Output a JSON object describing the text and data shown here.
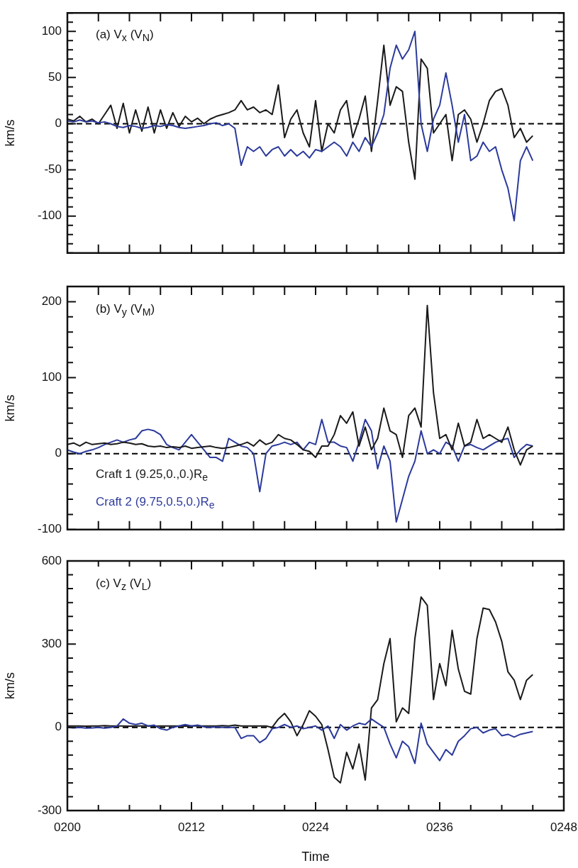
{
  "chart_data": [
    {
      "type": "line",
      "title": "(a) V$_{x}$ (V$_{N}$)",
      "ylabel": "km/s",
      "tick_labels": "y",
      "x": [
        200,
        200.6,
        201.2,
        201.8,
        202.4,
        203,
        203.6,
        204.2,
        204.8,
        205.4,
        206,
        206.6,
        207.2,
        207.8,
        208.4,
        209,
        209.6,
        210.2,
        210.8,
        211.4,
        212,
        212.6,
        213.2,
        213.8,
        214.4,
        215,
        215.6,
        216.2,
        216.8,
        217.4,
        218,
        218.6,
        219.2,
        219.8,
        220.4,
        221,
        221.6,
        222.2,
        222.8,
        223.4,
        224,
        224.6,
        225.2,
        225.8,
        226.4,
        227,
        227.6,
        228.2,
        228.8,
        229.4,
        230,
        230.6,
        231.2,
        231.8,
        232.4,
        233,
        233.6,
        234.2,
        234.8,
        235.4,
        236,
        236.6,
        237.2,
        237.8,
        238.4,
        239,
        239.6,
        240.2,
        240.8,
        241.4,
        242,
        242.6,
        243.2,
        243.8,
        244.4,
        245
      ],
      "series": [
        {
          "color": "#2b3a9b",
          "values": [
            3,
            2,
            4,
            2,
            3,
            1,
            2,
            0,
            -3,
            -4,
            -2,
            -3,
            -5,
            -4,
            -2,
            -3,
            -1,
            -2,
            -4,
            -5,
            -4,
            -3,
            -2,
            0,
            1,
            -2,
            0,
            -5,
            -45,
            -25,
            -30,
            -25,
            -35,
            -28,
            -25,
            -35,
            -28,
            -35,
            -30,
            -37,
            -28,
            -30,
            -25,
            -20,
            -25,
            -35,
            -20,
            -30,
            -15,
            -25,
            -10,
            10,
            60,
            85,
            70,
            80,
            100,
            0,
            -30,
            5,
            20,
            55,
            20,
            -20,
            10,
            -40,
            -35,
            -20,
            -30,
            -25,
            -50,
            -70,
            -105,
            -40,
            -25,
            -40
          ]
        },
        {
          "color": "#1a1a1a",
          "values": [
            5,
            3,
            8,
            2,
            5,
            0,
            10,
            20,
            -5,
            22,
            -10,
            15,
            -8,
            18,
            -10,
            15,
            -5,
            12,
            -3,
            8,
            2,
            6,
            0,
            5,
            8,
            10,
            12,
            15,
            25,
            15,
            18,
            12,
            15,
            10,
            42,
            -15,
            5,
            15,
            -10,
            -25,
            25,
            -30,
            0,
            -10,
            15,
            25,
            -15,
            5,
            30,
            -30,
            25,
            85,
            20,
            40,
            35,
            -20,
            -60,
            70,
            60,
            -10,
            0,
            10,
            -40,
            10,
            15,
            5,
            -20,
            0,
            25,
            35,
            38,
            20,
            -15,
            -5,
            -20,
            -13
          ]
        }
      ],
      "xlim": [
        200,
        248
      ],
      "xticks": [
        200,
        203,
        206,
        209,
        212,
        215,
        218,
        221,
        224,
        227,
        230,
        233,
        236,
        239,
        242,
        245,
        248
      ],
      "ylim": [
        -140,
        120
      ],
      "yticks": [
        {
          "value": -140,
          "label": null
        },
        {
          "value": -130,
          "label": null
        },
        {
          "value": -120,
          "label": null
        },
        {
          "value": -110,
          "label": null
        },
        -100,
        {
          "value": -90,
          "label": null
        },
        {
          "value": -80,
          "label": null
        },
        {
          "value": -70,
          "label": null
        },
        {
          "value": -60,
          "label": null
        },
        -50,
        {
          "value": -40,
          "label": null
        },
        {
          "value": -30,
          "label": null
        },
        {
          "value": -20,
          "label": null
        },
        {
          "value": -10,
          "label": null
        },
        0,
        {
          "value": 10,
          "label": null
        },
        {
          "value": 20,
          "label": null
        },
        {
          "value": 30,
          "label": null
        },
        {
          "value": 40,
          "label": null
        },
        50,
        {
          "value": 60,
          "label": null
        },
        {
          "value": 70,
          "label": null
        },
        {
          "value": 80,
          "label": null
        },
        {
          "value": 90,
          "label": null
        },
        100,
        {
          "value": 110,
          "label": null
        },
        {
          "value": 120,
          "label": null
        }
      ],
      "ref_lines": [
        {
          "axis": "y",
          "value": 0,
          "color": "#000000",
          "line_style": "dashed"
        }
      ]
    },
    {
      "type": "line",
      "title": "(b) V$_{y}$ (V$_{M}$)",
      "ylabel": "km/s",
      "tick_labels": "y",
      "legend": "bottom left",
      "x": [
        200,
        200.6,
        201.2,
        201.8,
        202.4,
        203,
        203.6,
        204.2,
        204.8,
        205.4,
        206,
        206.6,
        207.2,
        207.8,
        208.4,
        209,
        209.6,
        210.2,
        210.8,
        211.4,
        212,
        212.6,
        213.2,
        213.8,
        214.4,
        215,
        215.6,
        216.2,
        216.8,
        217.4,
        218,
        218.6,
        219.2,
        219.8,
        220.4,
        221,
        221.6,
        222.2,
        222.8,
        223.4,
        224,
        224.6,
        225.2,
        225.8,
        226.4,
        227,
        227.6,
        228.2,
        228.8,
        229.4,
        230,
        230.6,
        231.2,
        231.8,
        232.4,
        233,
        233.6,
        234.2,
        234.8,
        235.4,
        236,
        236.6,
        237.2,
        237.8,
        238.4,
        239,
        239.6,
        240.2,
        240.8,
        241.4,
        242,
        242.6,
        243.2,
        243.8,
        244.4,
        245
      ],
      "series": [
        {
          "name": "Craft 1 (9.25,0.,0.)R$_{e}$",
          "color": "#1a1a1a",
          "values": [
            12,
            14,
            10,
            15,
            12,
            13,
            14,
            12,
            13,
            15,
            14,
            12,
            13,
            10,
            9,
            10,
            8,
            9,
            8,
            10,
            7,
            8,
            9,
            10,
            8,
            7,
            8,
            10,
            12,
            15,
            10,
            18,
            12,
            15,
            25,
            20,
            18,
            12,
            5,
            3,
            -5,
            10,
            10,
            25,
            50,
            40,
            55,
            10,
            35,
            5,
            20,
            60,
            30,
            25,
            -5,
            50,
            60,
            35,
            195,
            80,
            20,
            25,
            5,
            40,
            10,
            15,
            45,
            20,
            25,
            20,
            15,
            35,
            5,
            -15,
            5,
            10
          ]
        },
        {
          "name": "Craft 2 (9.75,0.5,0.)R$_{e}$",
          "color": "#2b3a9b",
          "values": [
            5,
            2,
            0,
            3,
            5,
            8,
            12,
            15,
            18,
            15,
            18,
            20,
            30,
            32,
            30,
            25,
            12,
            8,
            5,
            15,
            25,
            15,
            5,
            -5,
            -5,
            -10,
            20,
            15,
            10,
            8,
            0,
            -50,
            0,
            10,
            12,
            15,
            12,
            15,
            5,
            15,
            12,
            45,
            15,
            15,
            10,
            8,
            -10,
            15,
            45,
            30,
            -20,
            10,
            -10,
            -90,
            -60,
            -30,
            -10,
            30,
            0,
            5,
            0,
            15,
            10,
            -10,
            10,
            12,
            8,
            5,
            10,
            15,
            18,
            20,
            -5,
            5,
            12,
            10
          ]
        }
      ],
      "xlim": [
        200,
        248
      ],
      "xticks": [
        200,
        203,
        206,
        209,
        212,
        215,
        218,
        221,
        224,
        227,
        230,
        233,
        236,
        239,
        242,
        245,
        248
      ],
      "ylim": [
        -100,
        220
      ],
      "yticks": [
        -100,
        {
          "value": -80,
          "label": null
        },
        {
          "value": -60,
          "label": null
        },
        {
          "value": -40,
          "label": null
        },
        {
          "value": -20,
          "label": null
        },
        0,
        {
          "value": 20,
          "label": null
        },
        {
          "value": 40,
          "label": null
        },
        {
          "value": 60,
          "label": null
        },
        {
          "value": 80,
          "label": null
        },
        100,
        {
          "value": 120,
          "label": null
        },
        {
          "value": 140,
          "label": null
        },
        {
          "value": 160,
          "label": null
        },
        {
          "value": 180,
          "label": null
        },
        200,
        {
          "value": 220,
          "label": null
        }
      ],
      "ref_lines": [
        {
          "axis": "y",
          "value": 0,
          "color": "#000000",
          "line_style": "dashed"
        }
      ]
    },
    {
      "type": "line",
      "title": "(c) V$_{z}$ (V$_{L}$)",
      "ylabel": "km/s",
      "xlabel": "Time",
      "x": [
        200,
        200.6,
        201.2,
        201.8,
        202.4,
        203,
        203.6,
        204.2,
        204.8,
        205.4,
        206,
        206.6,
        207.2,
        207.8,
        208.4,
        209,
        209.6,
        210.2,
        210.8,
        211.4,
        212,
        212.6,
        213.2,
        213.8,
        214.4,
        215,
        215.6,
        216.2,
        216.8,
        217.4,
        218,
        218.6,
        219.2,
        219.8,
        220.4,
        221,
        221.6,
        222.2,
        222.8,
        223.4,
        224,
        224.6,
        225.2,
        225.8,
        226.4,
        227,
        227.6,
        228.2,
        228.8,
        229.4,
        230,
        230.6,
        231.2,
        231.8,
        232.4,
        233,
        233.6,
        234.2,
        234.8,
        235.4,
        236,
        236.6,
        237.2,
        237.8,
        238.4,
        239,
        239.6,
        240.2,
        240.8,
        241.4,
        242,
        242.6,
        243.2,
        243.8,
        244.4,
        245
      ],
      "series": [
        {
          "color": "#2b3a9b",
          "values": [
            0,
            -2,
            0,
            -3,
            -2,
            0,
            -3,
            0,
            5,
            30,
            15,
            10,
            15,
            5,
            8,
            -5,
            -10,
            0,
            5,
            10,
            5,
            8,
            2,
            0,
            2,
            0,
            0,
            0,
            -40,
            -30,
            -30,
            -55,
            -40,
            -5,
            0,
            10,
            0,
            5,
            -5,
            0,
            5,
            -10,
            5,
            -40,
            10,
            -10,
            5,
            15,
            10,
            30,
            15,
            0,
            -60,
            -110,
            -50,
            -70,
            -130,
            15,
            -60,
            -90,
            -120,
            -80,
            -100,
            -50,
            -30,
            -5,
            0,
            -20,
            -10,
            -5,
            -30,
            -25,
            -35,
            -25,
            -20,
            -15
          ]
        },
        {
          "color": "#1a1a1a",
          "values": [
            5,
            5,
            5,
            4,
            5,
            5,
            6,
            5,
            5,
            5,
            4,
            5,
            5,
            5,
            4,
            5,
            5,
            5,
            5,
            4,
            5,
            5,
            5,
            5,
            5,
            6,
            5,
            8,
            5,
            5,
            5,
            5,
            5,
            0,
            30,
            50,
            20,
            -30,
            10,
            60,
            40,
            10,
            -80,
            -180,
            -200,
            -90,
            -150,
            -60,
            -190,
            70,
            100,
            230,
            320,
            20,
            70,
            50,
            320,
            470,
            440,
            100,
            230,
            150,
            350,
            210,
            130,
            120,
            320,
            430,
            425,
            380,
            310,
            200,
            170,
            100,
            170,
            190
          ]
        }
      ],
      "xlim": [
        200,
        248
      ],
      "xticks": [
        {
          "value": 200,
          "label": "0200"
        },
        {
          "value": 203,
          "label": null
        },
        {
          "value": 206,
          "label": null
        },
        {
          "value": 209,
          "label": null
        },
        {
          "value": 212,
          "label": "0212"
        },
        {
          "value": 215,
          "label": null
        },
        {
          "value": 218,
          "label": null
        },
        {
          "value": 221,
          "label": null
        },
        {
          "value": 224,
          "label": "0224"
        },
        {
          "value": 227,
          "label": null
        },
        {
          "value": 230,
          "label": null
        },
        {
          "value": 233,
          "label": null
        },
        {
          "value": 236,
          "label": "0236"
        },
        {
          "value": 239,
          "label": null
        },
        {
          "value": 242,
          "label": null
        },
        {
          "value": 245,
          "label": null
        },
        {
          "value": 248,
          "label": "0248"
        }
      ],
      "ylim": [
        -300,
        600
      ],
      "yticks": [
        -300,
        {
          "value": -250,
          "label": null
        },
        {
          "value": -200,
          "label": null
        },
        {
          "value": -150,
          "label": null
        },
        {
          "value": -100,
          "label": null
        },
        {
          "value": -50,
          "label": null
        },
        0,
        {
          "value": 50,
          "label": null
        },
        {
          "value": 100,
          "label": null
        },
        {
          "value": 150,
          "label": null
        },
        {
          "value": 200,
          "label": null
        },
        {
          "value": 250,
          "label": null
        },
        300,
        {
          "value": 350,
          "label": null
        },
        {
          "value": 400,
          "label": null
        },
        {
          "value": 450,
          "label": null
        },
        {
          "value": 500,
          "label": null
        },
        {
          "value": 550,
          "label": null
        },
        600
      ],
      "ref_lines": [
        {
          "axis": "y",
          "value": 0,
          "color": "#000000",
          "line_style": "dashed"
        }
      ]
    }
  ]
}
